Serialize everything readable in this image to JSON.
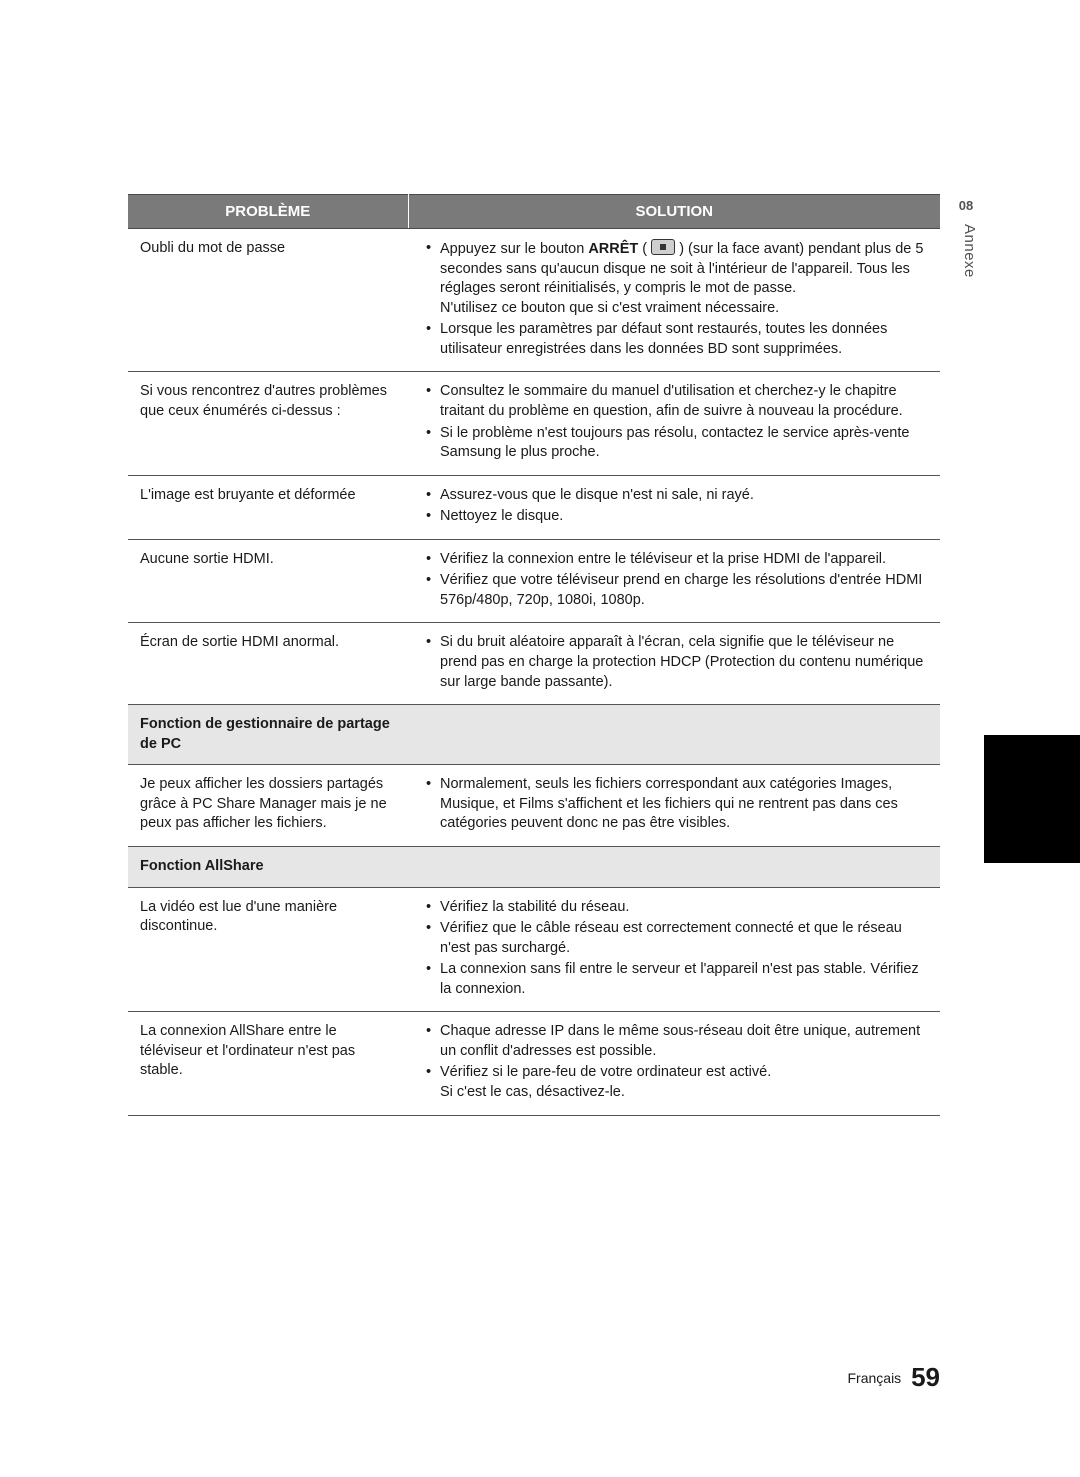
{
  "side": {
    "chapter_num": "08",
    "chapter_label": "Annexe"
  },
  "footer": {
    "lang": "Français",
    "page": "59"
  },
  "table": {
    "headers": {
      "problem": "PROBLÈME",
      "solution": "SOLUTION"
    },
    "rows": [
      {
        "type": "row",
        "problem": "Oubli du mot de passe",
        "solution_html": [
          {
            "prefix": "Appuyez sur le bouton ",
            "bold": "ARRÊT",
            "after_bold": " ( ",
            "icon": true,
            "after_icon": " ) (sur la face avant) pendant plus de 5 secondes sans qu'aucun disque ne soit à l'intérieur de l'appareil. Tous les réglages seront réinitialisés, y compris le mot de passe.",
            "extra_lines": [
              "N'utilisez ce bouton que si c'est vraiment nécessaire."
            ]
          },
          {
            "text": "Lorsque les paramètres par défaut sont restaurés, toutes les données utilisateur enregistrées dans les données BD sont supprimées."
          }
        ]
      },
      {
        "type": "row",
        "problem": "Si vous rencontrez d'autres problèmes que ceux énumérés ci-dessus :",
        "solution": [
          "Consultez le sommaire du manuel d'utilisation et cherchez-y le chapitre traitant du problème en question, afin de suivre à nouveau la procédure.",
          "Si le problème n'est toujours pas résolu, contactez le service après-vente Samsung le plus proche."
        ]
      },
      {
        "type": "row",
        "problem": "L'image est bruyante et déformée",
        "solution": [
          "Assurez-vous que le disque n'est ni sale, ni rayé.",
          "Nettoyez le disque."
        ]
      },
      {
        "type": "row",
        "problem": "Aucune sortie HDMI.",
        "solution": [
          "Vérifiez la connexion entre le téléviseur et la prise HDMI de l'appareil.",
          "Vérifiez que votre téléviseur prend en charge les résolutions d'entrée HDMI 576p/480p, 720p, 1080i, 1080p."
        ]
      },
      {
        "type": "row",
        "problem": "Écran de sortie HDMI anormal.",
        "solution": [
          "Si du bruit aléatoire apparaît à l'écran, cela signifie que le téléviseur ne prend pas en charge la protection HDCP (Protection du contenu numérique sur large bande passante)."
        ]
      },
      {
        "type": "section",
        "label": "Fonction de gestionnaire de partage de PC"
      },
      {
        "type": "row",
        "problem": "Je peux afficher les dossiers partagés grâce à PC Share Manager mais je ne peux pas afficher les fichiers.",
        "solution": [
          "Normalement, seuls les fichiers correspondant aux catégories Images, Musique, et Films s'affichent et les fichiers qui ne rentrent pas dans ces catégories peuvent donc ne pas être visibles."
        ]
      },
      {
        "type": "section",
        "label": "Fonction AllShare"
      },
      {
        "type": "row",
        "problem": "La vidéo est lue d'une manière discontinue.",
        "solution": [
          "Vérifiez la stabilité du réseau.",
          "Vérifiez que le câble réseau est correctement connecté et que le réseau n'est pas surchargé.",
          "La connexion sans fil entre le serveur et l'appareil n'est pas stable. Vérifiez la connexion."
        ]
      },
      {
        "type": "row",
        "problem": "La connexion AllShare entre le téléviseur et l'ordinateur n'est pas stable.",
        "solution_html": [
          {
            "text": "Chaque adresse IP dans le même sous-réseau doit être unique, autrement un conflit d'adresses est possible."
          },
          {
            "text": "Vérifiez si le pare-feu de votre ordinateur est activé.",
            "extra_lines": [
              "Si c'est le cas, désactivez-le."
            ]
          }
        ]
      }
    ]
  }
}
